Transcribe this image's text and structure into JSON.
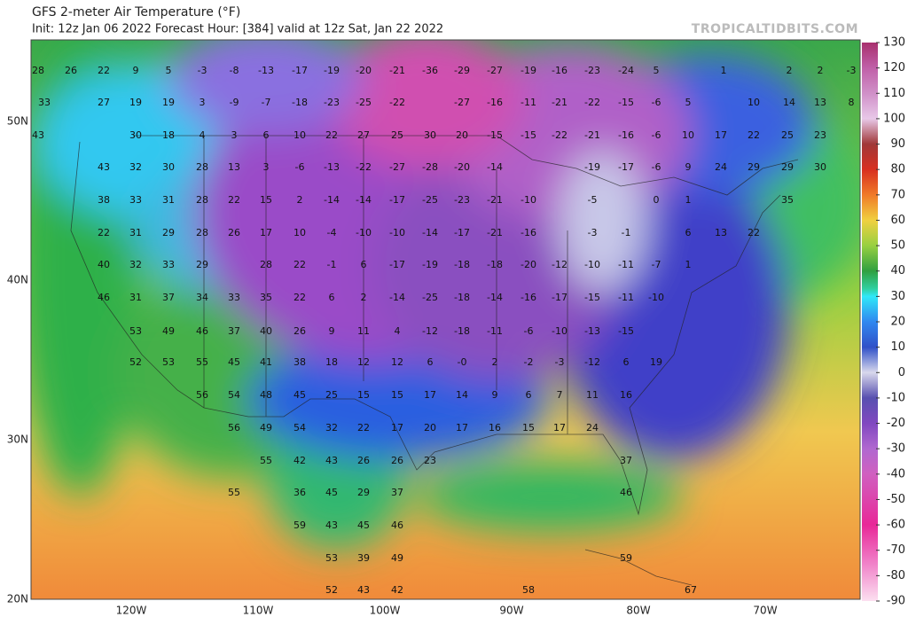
{
  "header": {
    "title": "GFS 2-meter Air Temperature (°F)",
    "subtitle": "Init: 12z Jan 06 2022   Forecast Hour: [384]   valid at 12z Sat, Jan 22 2022",
    "credit": "TROPICALTIDBITS.COM"
  },
  "colorbar": {
    "ticks": [
      130,
      120,
      110,
      100,
      90,
      80,
      70,
      60,
      50,
      40,
      30,
      20,
      10,
      0,
      -10,
      -20,
      -30,
      -40,
      -50,
      -60,
      -70,
      -80,
      -90
    ]
  },
  "axes": {
    "lat_labels": [
      "50N",
      "40N",
      "30N",
      "20N"
    ],
    "lon_labels": [
      "120W",
      "110W",
      "100W",
      "90W",
      "80W",
      "70W"
    ]
  },
  "map_values": [
    28,
    26,
    22,
    9,
    5,
    -3,
    -8,
    -13,
    -17,
    -19,
    -20,
    -21,
    -36,
    -29,
    -27,
    -19,
    -16,
    -23,
    -24,
    5,
    1,
    2,
    2,
    -3,
    33,
    27,
    19,
    19,
    3,
    -9,
    -7,
    -18,
    -23,
    -25,
    -22,
    -27,
    -16,
    -11,
    -21,
    -22,
    -15,
    -6,
    5,
    10,
    14,
    13,
    8,
    43,
    30,
    18,
    4,
    3,
    6,
    10,
    22,
    27,
    25,
    30,
    20,
    -15,
    -15,
    -22,
    -21,
    -16,
    -6,
    10,
    17,
    22,
    25,
    23,
    43,
    32,
    30,
    28,
    13,
    3,
    -6,
    -13,
    -22,
    -27,
    -28,
    -20,
    -14,
    -19,
    -17,
    -6,
    9,
    24,
    29,
    29,
    30,
    38,
    33,
    31,
    28,
    22,
    15,
    2,
    -14,
    -14,
    -17,
    -25,
    -23,
    -21,
    -10,
    -5,
    0,
    1,
    35,
    22,
    31,
    29,
    28,
    26,
    17,
    10,
    -4,
    -10,
    -10,
    -14,
    -17,
    -21,
    -16,
    -3,
    -1,
    6,
    13,
    22,
    40,
    32,
    33,
    29,
    28,
    22,
    -1,
    6,
    -17,
    -19,
    -18,
    -18,
    -20,
    -12,
    -10,
    -11,
    -7,
    1,
    46,
    31,
    37,
    34,
    33,
    35,
    22,
    6,
    2,
    -14,
    -25,
    -18,
    -14,
    -16,
    -17,
    -15,
    -11,
    -10,
    53,
    49,
    46,
    37,
    40,
    26,
    9,
    11,
    4,
    -12,
    -18,
    -11,
    -6,
    -10,
    -13,
    -15,
    52,
    53,
    55,
    45,
    41,
    38,
    18,
    12,
    12,
    6,
    {
      "value": 0,
      "label": "-0"
    },
    2,
    -2,
    -3,
    -12,
    6,
    19,
    56,
    54,
    48,
    45,
    25,
    15,
    15,
    17,
    14,
    9,
    6,
    7,
    11,
    16,
    56,
    49,
    54,
    32,
    22,
    17,
    20,
    17,
    16,
    15,
    17,
    24,
    55,
    42,
    43,
    26,
    26,
    23,
    37,
    55,
    36,
    45,
    29,
    37,
    46,
    59,
    43,
    45,
    46,
    53,
    39,
    49,
    59,
    52,
    43,
    42,
    58,
    67
  ]
}
